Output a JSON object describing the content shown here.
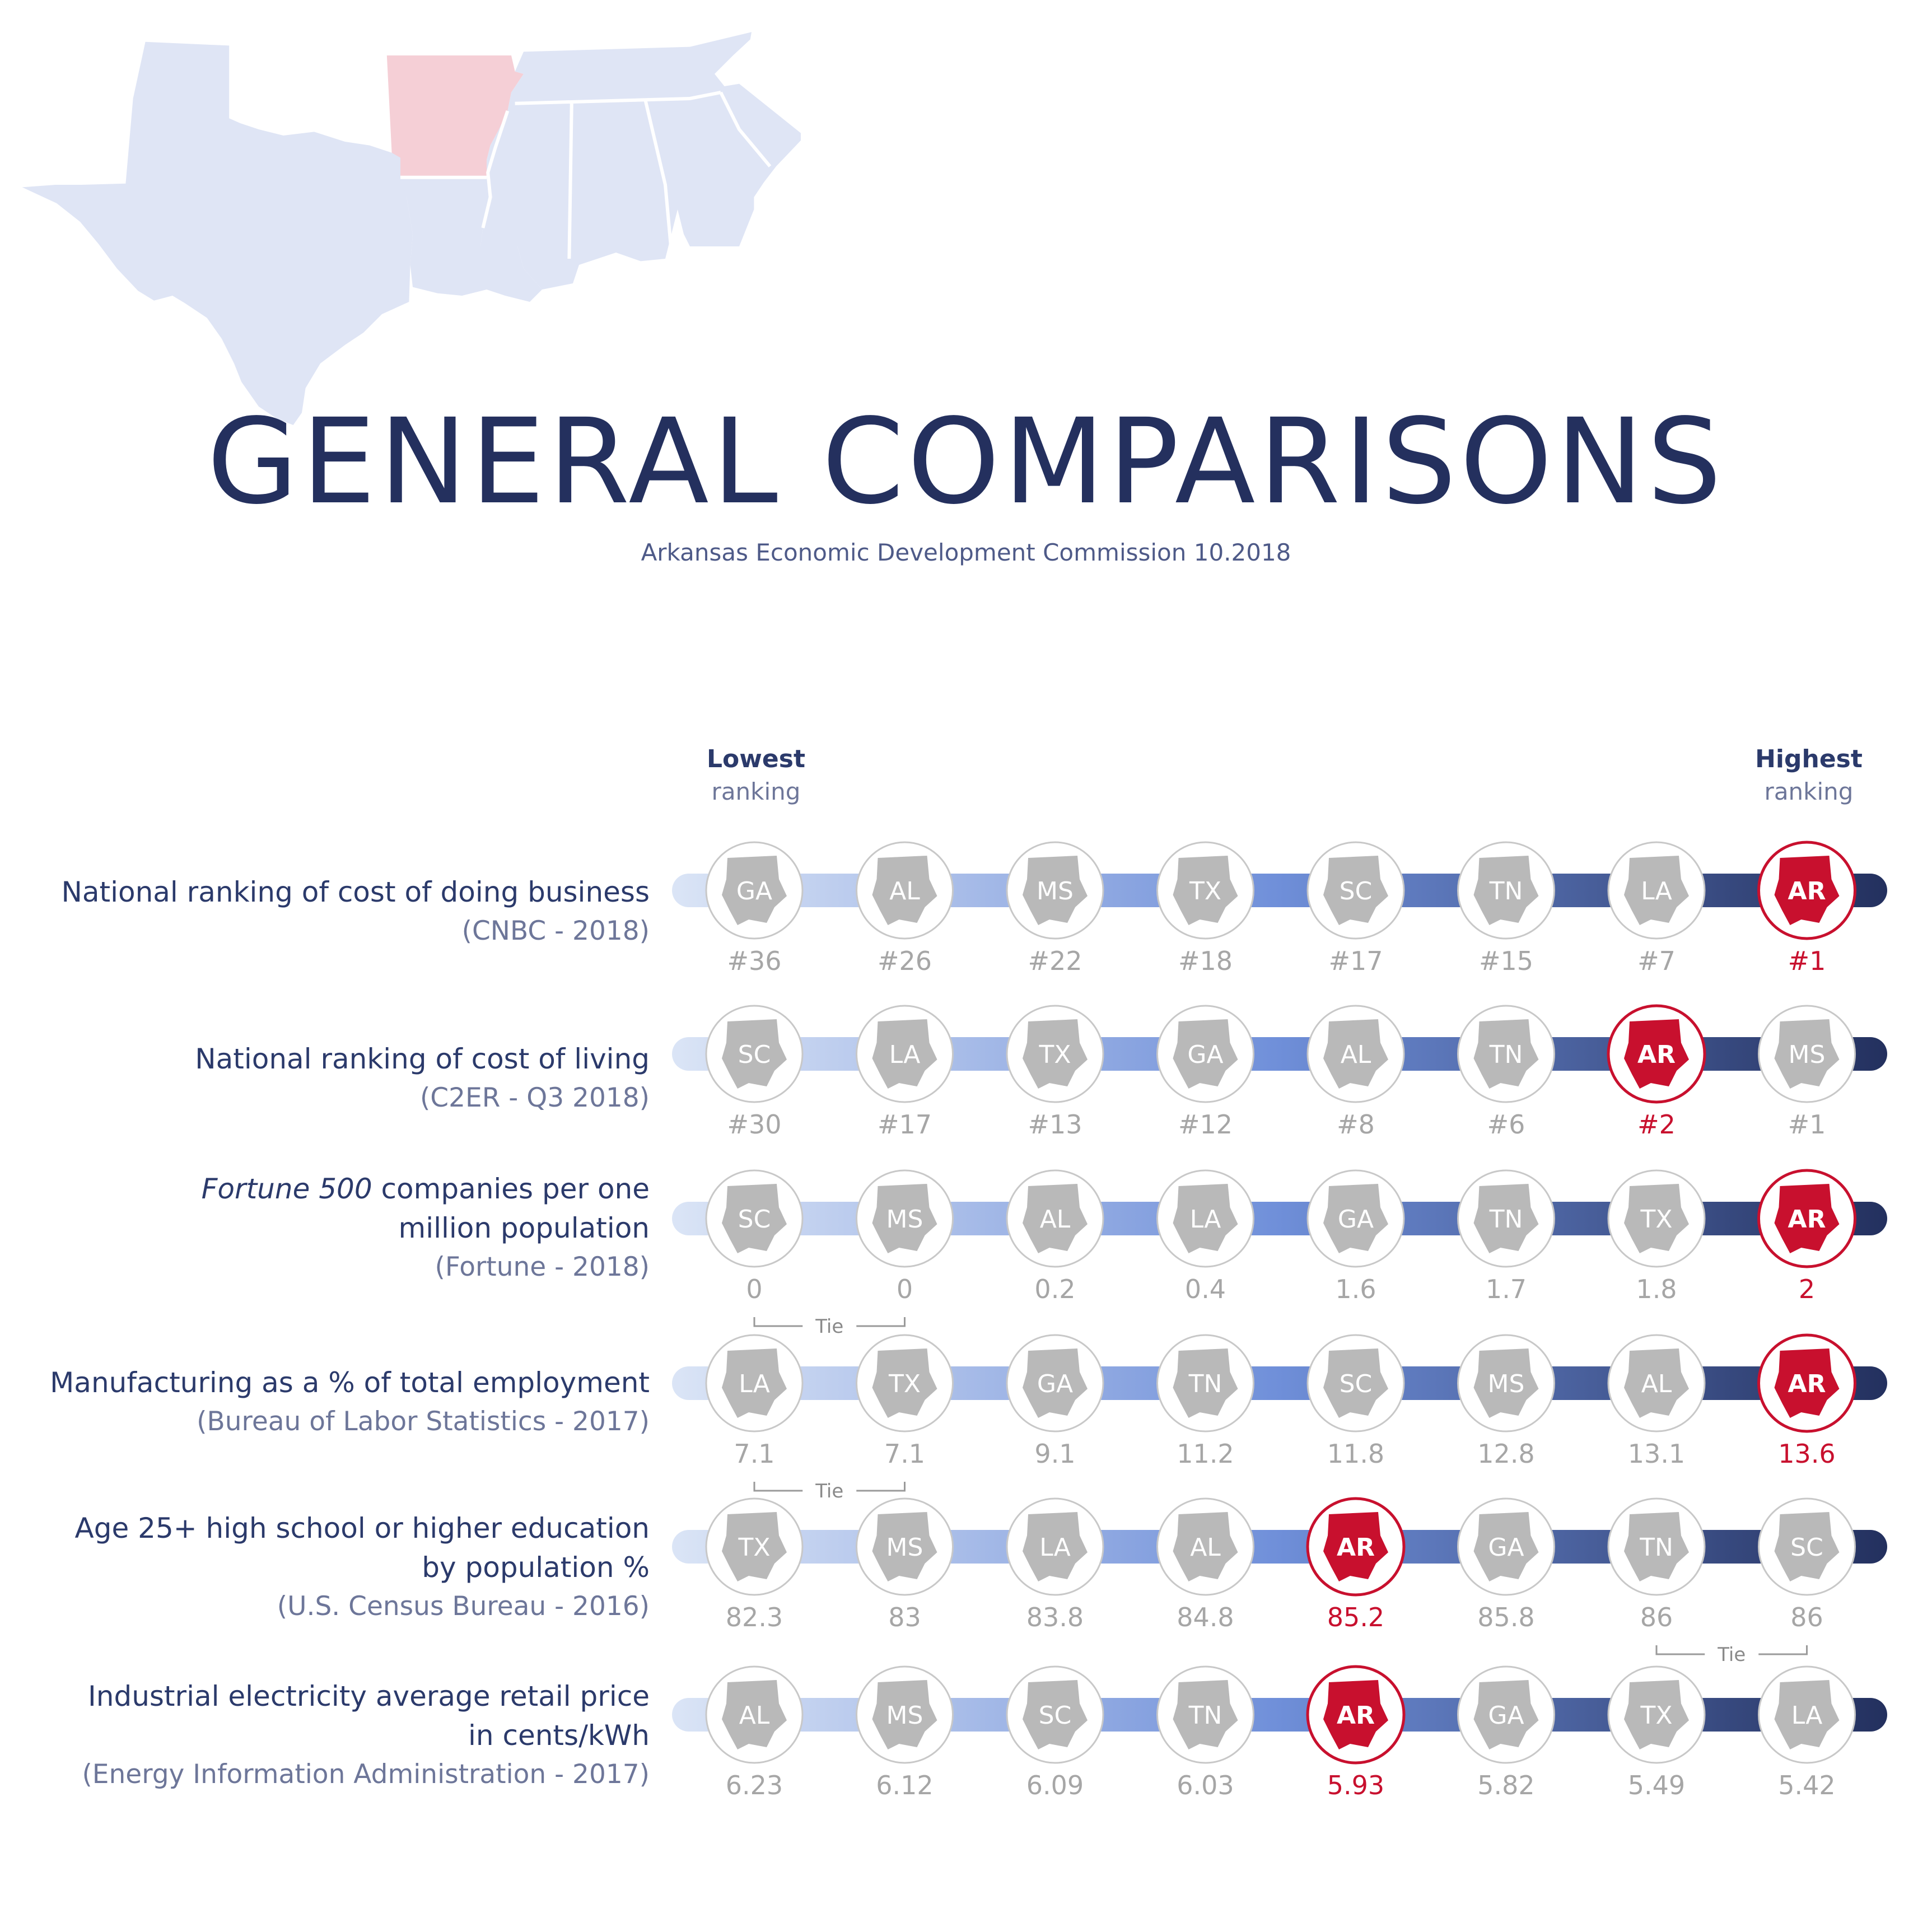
{
  "header": {
    "title": "GENERAL COMPARISONS",
    "subtitle": "Arkansas Economic Development Commission    10.2018"
  },
  "scale": {
    "lowest_bold": "Lowest",
    "lowest_sub": "ranking",
    "highest_bold": "Highest",
    "highest_sub": "ranking"
  },
  "colors": {
    "map_fill": "#dfe5f5",
    "arkansas_map": "#f5cfd6",
    "highlight": "#c8102e",
    "state_gray": "#b9b9b9",
    "value_gray": "#a6a6a6",
    "text_navy": "#2b3a6b",
    "bar_light": "#dbe5f6",
    "bar_mid": "#6f8fd9",
    "bar_dark": "#23305e"
  },
  "tie_label": "Tie",
  "chart_data": {
    "type": "table",
    "title": "GENERAL COMPARISONS",
    "rows": [
      {
        "label_lines": [
          "National ranking of cost of doing business"
        ],
        "source": "(CNBC - 2018)",
        "states": [
          "GA",
          "AL",
          "MS",
          "TX",
          "SC",
          "TN",
          "LA",
          "AR"
        ],
        "values": [
          "#36",
          "#26",
          "#22",
          "#18",
          "#17",
          "#15",
          "#7",
          "#1"
        ],
        "highlight_index": 7,
        "tie": null
      },
      {
        "label_lines": [
          "National ranking of cost of living"
        ],
        "source": "(C2ER - Q3 2018)",
        "states": [
          "SC",
          "LA",
          "TX",
          "GA",
          "AL",
          "TN",
          "AR",
          "MS"
        ],
        "values": [
          "#30",
          "#17",
          "#13",
          "#12",
          "#8",
          "#6",
          "#2",
          "#1"
        ],
        "highlight_index": 6,
        "tie": null
      },
      {
        "label_italic": "Fortune 500",
        "label_lines": [
          " companies per one",
          "million population"
        ],
        "source": "(Fortune - 2018)",
        "states": [
          "SC",
          "MS",
          "AL",
          "LA",
          "GA",
          "TN",
          "TX",
          "AR"
        ],
        "values": [
          "0",
          "0",
          "0.2",
          "0.4",
          "1.6",
          "1.7",
          "1.8",
          "2"
        ],
        "highlight_index": 7,
        "tie": [
          0,
          1
        ]
      },
      {
        "label_lines": [
          "Manufacturing as a % of total employment"
        ],
        "source": "(Bureau of Labor Statistics - 2017)",
        "states": [
          "LA",
          "TX",
          "GA",
          "TN",
          "SC",
          "MS",
          "AL",
          "AR"
        ],
        "values": [
          "7.1",
          "7.1",
          "9.1",
          "11.2",
          "11.8",
          "12.8",
          "13.1",
          "13.6"
        ],
        "highlight_index": 7,
        "tie": [
          0,
          1
        ]
      },
      {
        "label_lines": [
          "Age 25+ high school or higher education",
          "by population %"
        ],
        "source": "(U.S. Census Bureau - 2016)",
        "states": [
          "TX",
          "MS",
          "LA",
          "AL",
          "AR",
          "GA",
          "TN",
          "SC"
        ],
        "values": [
          "82.3",
          "83",
          "83.8",
          "84.8",
          "85.2",
          "85.8",
          "86",
          "86"
        ],
        "highlight_index": 4,
        "tie": [
          6,
          7
        ]
      },
      {
        "label_lines": [
          "Industrial electricity average retail price",
          "in cents/kWh"
        ],
        "source": "(Energy Information Administration - 2017)",
        "states": [
          "AL",
          "MS",
          "SC",
          "TN",
          "AR",
          "GA",
          "TX",
          "LA"
        ],
        "values": [
          "6.23",
          "6.12",
          "6.09",
          "6.03",
          "5.93",
          "5.82",
          "5.49",
          "5.42"
        ],
        "highlight_index": 4,
        "tie": null
      }
    ]
  }
}
